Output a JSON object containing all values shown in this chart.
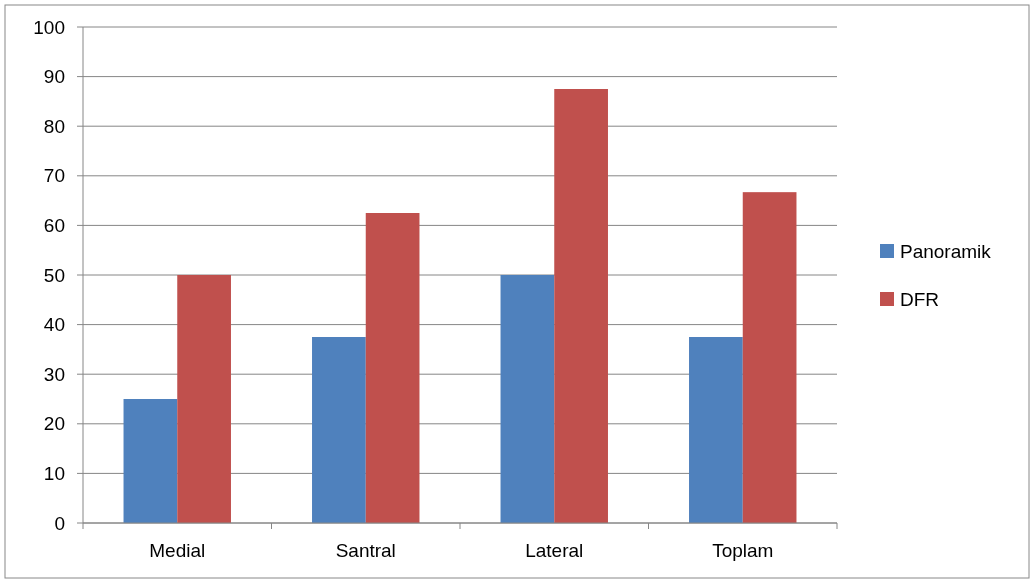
{
  "chart_data": {
    "type": "bar",
    "categories": [
      "Medial",
      "Santral",
      "Lateral",
      "Toplam"
    ],
    "series": [
      {
        "name": "Panoramik",
        "color": "#4f81bd",
        "values": [
          25,
          37.5,
          50,
          37.5
        ]
      },
      {
        "name": "DFR",
        "color": "#c0504d",
        "values": [
          50,
          62.5,
          87.5,
          66.7
        ]
      }
    ],
    "ylim": [
      0,
      100
    ],
    "yticks": [
      0,
      10,
      20,
      30,
      40,
      50,
      60,
      70,
      80,
      90,
      100
    ],
    "grid": "y",
    "legend": "right"
  }
}
